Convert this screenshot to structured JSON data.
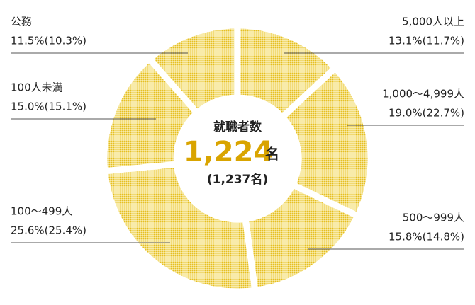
{
  "chart_data": {
    "type": "donut",
    "categories": [
      "5,000人以上",
      "1,000～4,999人",
      "500～999人",
      "100～499人",
      "100人未満",
      "公務"
    ],
    "values": [
      13.1,
      19.0,
      15.8,
      25.6,
      15.0,
      11.5
    ],
    "value_labels": [
      "13.1%(11.7%)",
      "19.0%(22.7%)",
      "15.8%(14.8%)",
      "25.6%(25.4%)",
      "15.0%(15.1%)",
      "11.5%(10.3%)"
    ],
    "color": "#ecc935",
    "center_title": "就職者数",
    "center_value": "1,224",
    "center_unit": "名",
    "center_previous": "(1,237名)"
  }
}
